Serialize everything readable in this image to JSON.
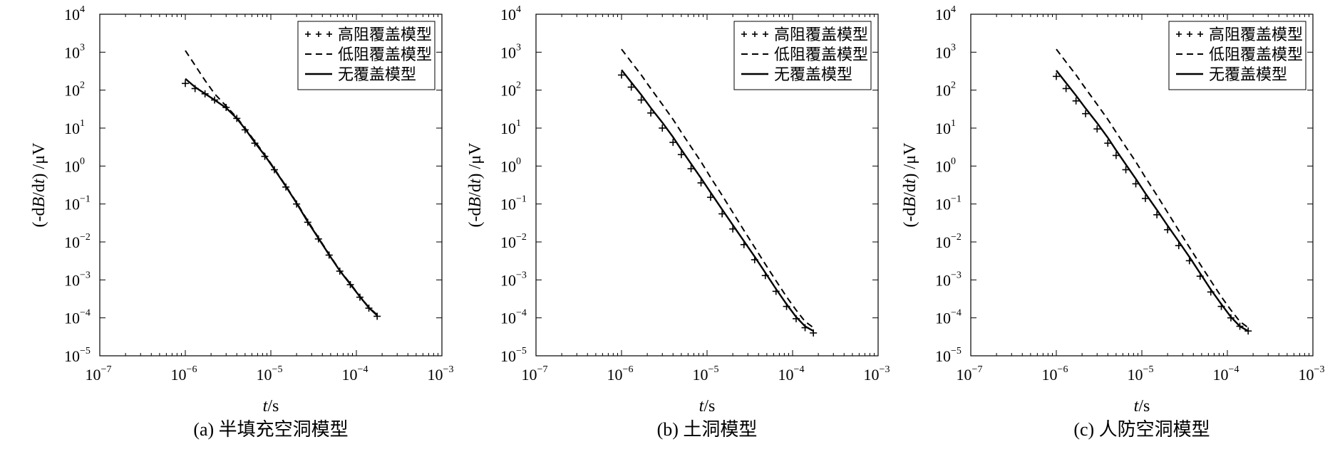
{
  "chart_data": [
    {
      "type": "line",
      "caption": "(a) 半填充空洞模型",
      "xlabel_italic": "t",
      "xlabel_rest": "/s",
      "ylabel_pre": "(-d",
      "ylabel_italic": "B",
      "ylabel_mid": "/d",
      "ylabel_italic2": "t",
      "ylabel_post": ") /μV",
      "x_scale": "log",
      "y_scale": "log",
      "xlim": [
        1e-07,
        0.001
      ],
      "ylim": [
        1e-05,
        10000.0
      ],
      "x_ticks": [
        {
          "base": "10",
          "exp": "−7",
          "value": 1e-07
        },
        {
          "base": "10",
          "exp": "−6",
          "value": 1e-06
        },
        {
          "base": "10",
          "exp": "−5",
          "value": 1e-05
        },
        {
          "base": "10",
          "exp": "−4",
          "value": 0.0001
        },
        {
          "base": "10",
          "exp": "−3",
          "value": 0.001
        }
      ],
      "y_ticks": [
        {
          "base": "10",
          "exp": "−5",
          "value": 1e-05
        },
        {
          "base": "10",
          "exp": "−4",
          "value": 0.0001
        },
        {
          "base": "10",
          "exp": "−3",
          "value": 0.001
        },
        {
          "base": "10",
          "exp": "−2",
          "value": 0.01
        },
        {
          "base": "10",
          "exp": "−1",
          "value": 0.1
        },
        {
          "base": "10",
          "exp": "0",
          "value": 1
        },
        {
          "base": "10",
          "exp": "1",
          "value": 10
        },
        {
          "base": "10",
          "exp": "2",
          "value": 100
        },
        {
          "base": "10",
          "exp": "3",
          "value": 1000
        },
        {
          "base": "10",
          "exp": "4",
          "value": 10000
        }
      ],
      "legend_position": "top-right",
      "series": [
        {
          "name": "高阻覆盖模型",
          "style": "plus",
          "x": [
            1e-06,
            1.3e-06,
            1.7e-06,
            2.2e-06,
            3e-06,
            4e-06,
            5e-06,
            6.5e-06,
            8.5e-06,
            1.1e-05,
            1.5e-05,
            2e-05,
            2.7e-05,
            3.6e-05,
            4.8e-05,
            6.4e-05,
            8.5e-05,
            0.00011,
            0.00014,
            0.000175
          ],
          "y": [
            150,
            110,
            80,
            55,
            35,
            18,
            9,
            4,
            1.8,
            0.8,
            0.28,
            0.1,
            0.033,
            0.012,
            0.0045,
            0.0017,
            0.00075,
            0.00035,
            0.00018,
            0.00011
          ]
        },
        {
          "name": "低阻覆盖模型",
          "style": "dashed",
          "x": [
            1e-06,
            1.3e-06,
            1.7e-06,
            2.2e-06,
            3e-06,
            4e-06,
            5e-06,
            6.5e-06,
            8.5e-06,
            1.1e-05,
            1.5e-05,
            2e-05,
            2.7e-05,
            3.6e-05,
            4.8e-05,
            6.4e-05,
            8.5e-05,
            0.00011,
            0.00014,
            0.000175
          ],
          "y": [
            1100,
            450,
            180,
            80,
            38,
            19,
            10,
            4.5,
            2,
            0.85,
            0.3,
            0.11,
            0.036,
            0.013,
            0.0048,
            0.0018,
            0.0008,
            0.00037,
            0.00019,
            0.00012
          ]
        },
        {
          "name": "无覆盖模型",
          "style": "solid",
          "x": [
            1e-06,
            1.3e-06,
            1.7e-06,
            2.2e-06,
            3e-06,
            4e-06,
            5e-06,
            6.5e-06,
            8.5e-06,
            1.1e-05,
            1.5e-05,
            2e-05,
            2.7e-05,
            3.6e-05,
            4.8e-05,
            6.4e-05,
            8.5e-05,
            0.00011,
            0.00014,
            0.000175
          ],
          "y": [
            200,
            120,
            80,
            55,
            34,
            18,
            9.5,
            4.2,
            1.9,
            0.82,
            0.29,
            0.105,
            0.034,
            0.0125,
            0.0046,
            0.00175,
            0.00077,
            0.00036,
            0.000185,
            0.000115
          ]
        }
      ]
    },
    {
      "type": "line",
      "caption": "(b) 土洞模型",
      "xlabel_italic": "t",
      "xlabel_rest": "/s",
      "ylabel_pre": "(-d",
      "ylabel_italic": "B",
      "ylabel_mid": "/d",
      "ylabel_italic2": "t",
      "ylabel_post": ") /μV",
      "x_scale": "log",
      "y_scale": "log",
      "xlim": [
        1e-07,
        0.001
      ],
      "ylim": [
        1e-05,
        10000.0
      ],
      "x_ticks": [
        {
          "base": "10",
          "exp": "−7",
          "value": 1e-07
        },
        {
          "base": "10",
          "exp": "−6",
          "value": 1e-06
        },
        {
          "base": "10",
          "exp": "−5",
          "value": 1e-05
        },
        {
          "base": "10",
          "exp": "−4",
          "value": 0.0001
        },
        {
          "base": "10",
          "exp": "−3",
          "value": 0.001
        }
      ],
      "y_ticks": [
        {
          "base": "10",
          "exp": "−5",
          "value": 1e-05
        },
        {
          "base": "10",
          "exp": "−4",
          "value": 0.0001
        },
        {
          "base": "10",
          "exp": "−3",
          "value": 0.001
        },
        {
          "base": "10",
          "exp": "−2",
          "value": 0.01
        },
        {
          "base": "10",
          "exp": "−1",
          "value": 0.1
        },
        {
          "base": "10",
          "exp": "0",
          "value": 1
        },
        {
          "base": "10",
          "exp": "1",
          "value": 10
        },
        {
          "base": "10",
          "exp": "2",
          "value": 100
        },
        {
          "base": "10",
          "exp": "3",
          "value": 1000
        },
        {
          "base": "10",
          "exp": "4",
          "value": 10000
        }
      ],
      "legend_position": "top-right",
      "series": [
        {
          "name": "高阻覆盖模型",
          "style": "plus",
          "x": [
            1e-06,
            1.3e-06,
            1.7e-06,
            2.2e-06,
            3e-06,
            4e-06,
            5e-06,
            6.5e-06,
            8.5e-06,
            1.1e-05,
            1.5e-05,
            2e-05,
            2.7e-05,
            3.6e-05,
            4.8e-05,
            6.4e-05,
            8.5e-05,
            0.00011,
            0.00014,
            0.000175
          ],
          "y": [
            250,
            120,
            55,
            25,
            10,
            4.2,
            2,
            0.85,
            0.36,
            0.15,
            0.055,
            0.022,
            0.0085,
            0.0034,
            0.0013,
            0.0005,
            0.0002,
            9.5e-05,
            5.5e-05,
            4e-05
          ]
        },
        {
          "name": "低阻覆盖模型",
          "style": "dashed",
          "x": [
            1e-06,
            1.3e-06,
            1.7e-06,
            2.2e-06,
            3e-06,
            4e-06,
            5e-06,
            6.5e-06,
            8.5e-06,
            1.1e-05,
            1.5e-05,
            2e-05,
            2.7e-05,
            3.6e-05,
            4.8e-05,
            6.4e-05,
            8.5e-05,
            0.00011,
            0.00014,
            0.000175
          ],
          "y": [
            1200,
            550,
            250,
            110,
            42,
            17,
            7.8,
            3.2,
            1.3,
            0.5,
            0.17,
            0.06,
            0.02,
            0.0072,
            0.0026,
            0.00095,
            0.00036,
            0.00016,
            8e-05,
            5.5e-05
          ]
        },
        {
          "name": "无覆盖模型",
          "style": "solid",
          "x": [
            1e-06,
            1.3e-06,
            1.7e-06,
            2.2e-06,
            3e-06,
            4e-06,
            5e-06,
            6.5e-06,
            8.5e-06,
            1.1e-05,
            1.5e-05,
            2e-05,
            2.7e-05,
            3.6e-05,
            4.8e-05,
            6.4e-05,
            8.5e-05,
            0.00011,
            0.00014,
            0.000175
          ],
          "y": [
            340,
            160,
            75,
            34,
            14,
            5.8,
            2.7,
            1.15,
            0.48,
            0.2,
            0.072,
            0.028,
            0.0105,
            0.0041,
            0.00155,
            0.00058,
            0.00023,
            0.000105,
            6e-05,
            4.5e-05
          ]
        }
      ]
    },
    {
      "type": "line",
      "caption": "(c) 人防空洞模型",
      "xlabel_italic": "t",
      "xlabel_rest": "/s",
      "ylabel_pre": "(-d",
      "ylabel_italic": "B",
      "ylabel_mid": "/d",
      "ylabel_italic2": "t",
      "ylabel_post": ") /μV",
      "x_scale": "log",
      "y_scale": "log",
      "xlim": [
        1e-07,
        0.001
      ],
      "ylim": [
        1e-05,
        10000.0
      ],
      "x_ticks": [
        {
          "base": "10",
          "exp": "−7",
          "value": 1e-07
        },
        {
          "base": "10",
          "exp": "−6",
          "value": 1e-06
        },
        {
          "base": "10",
          "exp": "−5",
          "value": 1e-05
        },
        {
          "base": "10",
          "exp": "−4",
          "value": 0.0001
        },
        {
          "base": "10",
          "exp": "−3",
          "value": 0.001
        }
      ],
      "y_ticks": [
        {
          "base": "10",
          "exp": "−5",
          "value": 1e-05
        },
        {
          "base": "10",
          "exp": "−4",
          "value": 0.0001
        },
        {
          "base": "10",
          "exp": "−3",
          "value": 0.001
        },
        {
          "base": "10",
          "exp": "−2",
          "value": 0.01
        },
        {
          "base": "10",
          "exp": "−1",
          "value": 0.1
        },
        {
          "base": "10",
          "exp": "0",
          "value": 1
        },
        {
          "base": "10",
          "exp": "1",
          "value": 10
        },
        {
          "base": "10",
          "exp": "2",
          "value": 100
        },
        {
          "base": "10",
          "exp": "3",
          "value": 1000
        },
        {
          "base": "10",
          "exp": "4",
          "value": 10000
        }
      ],
      "legend_position": "top-right",
      "series": [
        {
          "name": "高阻覆盖模型",
          "style": "plus",
          "x": [
            1e-06,
            1.3e-06,
            1.7e-06,
            2.2e-06,
            3e-06,
            4e-06,
            5e-06,
            6.5e-06,
            8.5e-06,
            1.1e-05,
            1.5e-05,
            2e-05,
            2.7e-05,
            3.6e-05,
            4.8e-05,
            6.4e-05,
            8.5e-05,
            0.00011,
            0.00014,
            0.000175
          ],
          "y": [
            230,
            110,
            52,
            24,
            9.5,
            4,
            1.9,
            0.8,
            0.34,
            0.14,
            0.052,
            0.021,
            0.008,
            0.0032,
            0.00125,
            0.00048,
            0.0002,
            0.0001,
            6e-05,
            4.5e-05
          ]
        },
        {
          "name": "低阻覆盖模型",
          "style": "dashed",
          "x": [
            1e-06,
            1.3e-06,
            1.7e-06,
            2.2e-06,
            3e-06,
            4e-06,
            5e-06,
            6.5e-06,
            8.5e-06,
            1.1e-05,
            1.5e-05,
            2e-05,
            2.7e-05,
            3.6e-05,
            4.8e-05,
            6.4e-05,
            8.5e-05,
            0.00011,
            0.00014,
            0.000175
          ],
          "y": [
            1200,
            550,
            250,
            110,
            42,
            17,
            7.8,
            3.2,
            1.3,
            0.5,
            0.17,
            0.06,
            0.02,
            0.0072,
            0.0026,
            0.00095,
            0.00036,
            0.00016,
            8e-05,
            5.5e-05
          ]
        },
        {
          "name": "无覆盖模型",
          "style": "solid",
          "x": [
            1e-06,
            1.3e-06,
            1.7e-06,
            2.2e-06,
            3e-06,
            4e-06,
            5e-06,
            6.5e-06,
            8.5e-06,
            1.1e-05,
            1.5e-05,
            2e-05,
            2.7e-05,
            3.6e-05,
            4.8e-05,
            6.4e-05,
            8.5e-05,
            0.00011,
            0.00014,
            0.000175
          ],
          "y": [
            330,
            155,
            72,
            33,
            13.5,
            5.6,
            2.6,
            1.1,
            0.46,
            0.19,
            0.07,
            0.027,
            0.0102,
            0.004,
            0.0015,
            0.00056,
            0.00023,
            0.000105,
            6e-05,
            4.5e-05
          ]
        }
      ]
    }
  ]
}
